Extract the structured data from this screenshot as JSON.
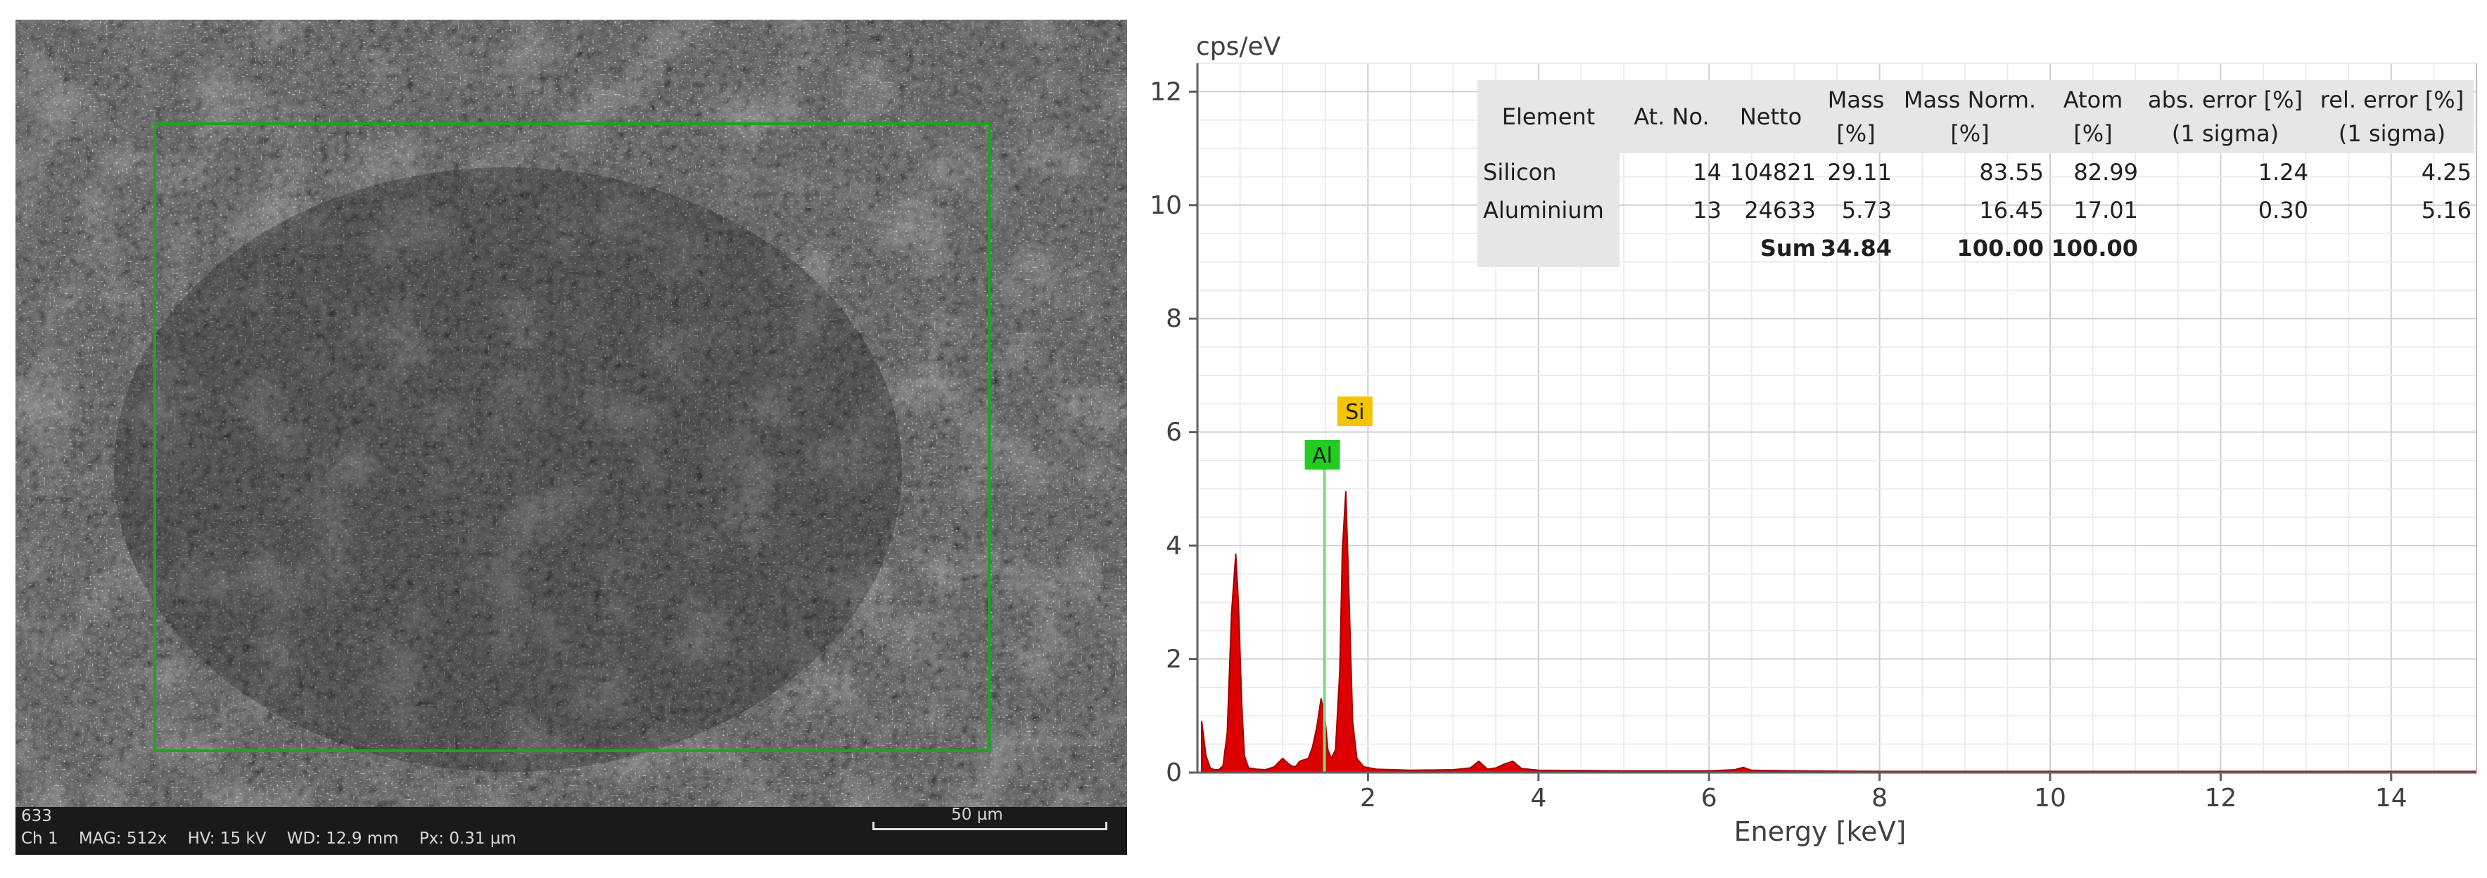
{
  "sem": {
    "frame_label": "633",
    "info": "Ch 1    MAG: 512x    HV: 15 kV    WD: 12.9 mm    Px: 0.31 µm",
    "scale_label": "50 µm"
  },
  "chart_data": {
    "type": "line",
    "title": "",
    "ylabel": "cps/eV",
    "xlabel": "Energy [keV]",
    "xlim": [
      0,
      15.0
    ],
    "ylim": [
      0,
      12.5
    ],
    "xticks": [
      2,
      4,
      6,
      8,
      10,
      12,
      14
    ],
    "yticks": [
      0,
      2,
      4,
      6,
      8,
      10,
      12
    ],
    "grid": true,
    "fill_color": "#dd0000",
    "series": [
      {
        "x": [
          0.05,
          0.1,
          0.15,
          0.2,
          0.25,
          0.3,
          0.35,
          0.4,
          0.45,
          0.48,
          0.52,
          0.55,
          0.6,
          0.7,
          0.8,
          0.9,
          1.0,
          1.05,
          1.1,
          1.15,
          1.2,
          1.3,
          1.35,
          1.4,
          1.45,
          1.49,
          1.53,
          1.57,
          1.62,
          1.67,
          1.7,
          1.74,
          1.78,
          1.82,
          1.87,
          1.95,
          2.1,
          2.5,
          3.0,
          3.2,
          3.3,
          3.4,
          3.5,
          3.6,
          3.7,
          3.8,
          4.0,
          5.0,
          6.0,
          6.3,
          6.4,
          6.5,
          7.0,
          8.0,
          10.0,
          12.0,
          14.0,
          15.0
        ],
        "y": [
          0.9,
          0.3,
          0.08,
          0.05,
          0.05,
          0.12,
          0.7,
          2.8,
          3.85,
          3.0,
          1.2,
          0.3,
          0.08,
          0.06,
          0.05,
          0.1,
          0.25,
          0.18,
          0.12,
          0.1,
          0.2,
          0.25,
          0.45,
          0.8,
          1.3,
          1.05,
          0.4,
          0.25,
          0.4,
          1.8,
          3.9,
          4.95,
          3.0,
          0.9,
          0.25,
          0.1,
          0.06,
          0.04,
          0.05,
          0.08,
          0.2,
          0.06,
          0.08,
          0.15,
          0.2,
          0.07,
          0.04,
          0.03,
          0.03,
          0.05,
          0.09,
          0.04,
          0.03,
          0.02,
          0.02,
          0.02,
          0.02,
          0.02
        ]
      }
    ],
    "annotations": [
      {
        "text": "Al",
        "x": 1.49,
        "color": "#22cc22"
      },
      {
        "text": "Si",
        "x": 1.74,
        "color": "#f5c400"
      }
    ]
  },
  "quant_table": {
    "headers": [
      [
        "Element",
        ""
      ],
      [
        "At. No.",
        ""
      ],
      [
        "Netto",
        ""
      ],
      [
        "Mass",
        "[%]"
      ],
      [
        "Mass Norm.",
        "[%]"
      ],
      [
        "Atom",
        "[%]"
      ],
      [
        "abs. error [%]",
        "(1 sigma)"
      ],
      [
        "rel. error [%]",
        "(1 sigma)"
      ]
    ],
    "rows": [
      [
        "Silicon",
        "14",
        "104821",
        "29.11",
        "83.55",
        "82.99",
        "1.24",
        "4.25"
      ],
      [
        "Aluminium",
        "13",
        "24633",
        "5.73",
        "16.45",
        "17.01",
        "0.30",
        "5.16"
      ]
    ],
    "sum": {
      "label": "Sum",
      "mass": "34.84",
      "mass_norm": "100.00",
      "atom": "100.00"
    }
  }
}
